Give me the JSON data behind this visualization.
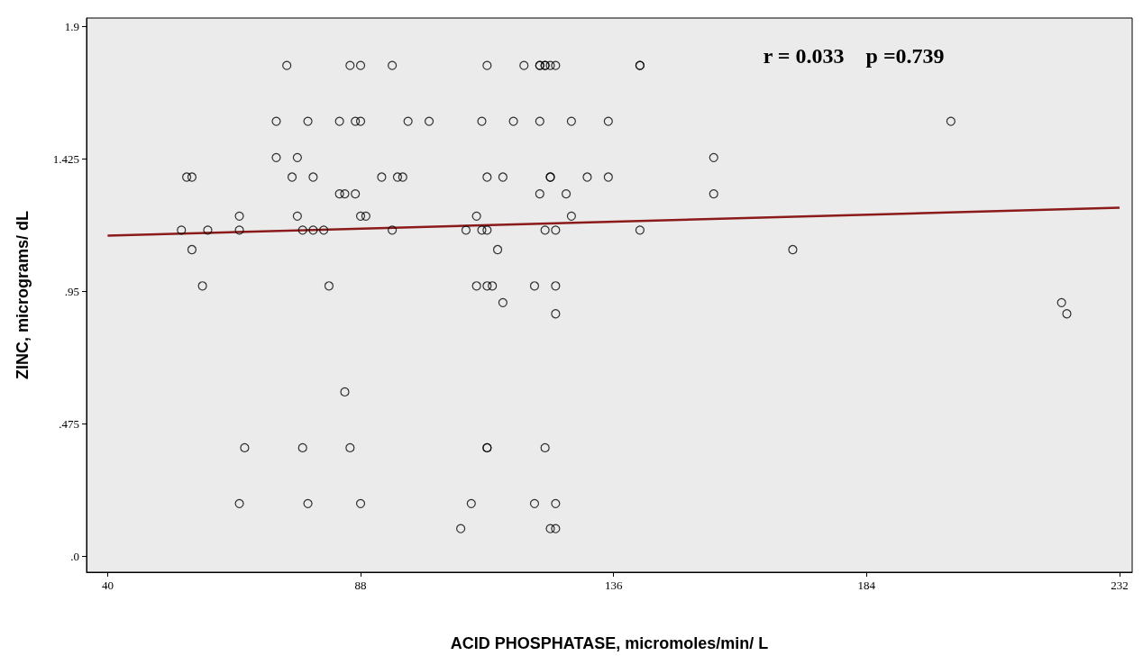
{
  "chart_data": {
    "type": "scatter",
    "xlabel": "ACID PHOSPHATASE, micromoles/min/ L",
    "ylabel": "ZINC, micrograms/ dL",
    "annotations": [
      "r = 0.033    p =0.739"
    ],
    "xlim": [
      36,
      234.4
    ],
    "xticks": [
      40,
      88,
      136,
      184,
      232
    ],
    "ylim": [
      -0.056,
      1.93
    ],
    "yticks": [
      {
        "value": 1.9,
        "label": "1.9"
      },
      {
        "value": 1.425,
        "label": "1.425"
      },
      {
        "value": 0.95,
        "label": ".95"
      },
      {
        "value": 0.475,
        "label": ".475"
      },
      {
        "value": 0,
        "label": ".0"
      }
    ],
    "grid": false,
    "marker": "circle",
    "series": [
      {
        "color": "#000000",
        "x": [
          74,
          86,
          88,
          94,
          112,
          119,
          122,
          122,
          123,
          123,
          124,
          125,
          141,
          141,
          72,
          78,
          84,
          87,
          88,
          97,
          101,
          111,
          117,
          122,
          128,
          135,
          200,
          72,
          76,
          155,
          55,
          56,
          75,
          79,
          92,
          95,
          96,
          112,
          115,
          124,
          124,
          131,
          135,
          84,
          85,
          87,
          122,
          127,
          155,
          65,
          76,
          110,
          128,
          88,
          89,
          54,
          59,
          65,
          77,
          79,
          81,
          94,
          108,
          111,
          112,
          123,
          125,
          141,
          56,
          114,
          170,
          58,
          82,
          110,
          112,
          113,
          121,
          125,
          115,
          221,
          125,
          222,
          85,
          66,
          77,
          86,
          112,
          112,
          123,
          65,
          78,
          88,
          109,
          121,
          125,
          107,
          124,
          125
        ],
        "values": [
          1.76,
          1.76,
          1.76,
          1.76,
          1.76,
          1.76,
          1.76,
          1.76,
          1.76,
          1.76,
          1.76,
          1.76,
          1.76,
          1.76,
          1.56,
          1.56,
          1.56,
          1.56,
          1.56,
          1.56,
          1.56,
          1.56,
          1.56,
          1.56,
          1.56,
          1.56,
          1.56,
          1.43,
          1.43,
          1.43,
          1.36,
          1.36,
          1.36,
          1.36,
          1.36,
          1.36,
          1.36,
          1.36,
          1.36,
          1.36,
          1.36,
          1.36,
          1.36,
          1.3,
          1.3,
          1.3,
          1.3,
          1.3,
          1.3,
          1.22,
          1.22,
          1.22,
          1.22,
          1.22,
          1.22,
          1.17,
          1.17,
          1.17,
          1.17,
          1.17,
          1.17,
          1.17,
          1.17,
          1.17,
          1.17,
          1.17,
          1.17,
          1.17,
          1.1,
          1.1,
          1.1,
          0.97,
          0.97,
          0.97,
          0.97,
          0.97,
          0.97,
          0.97,
          0.91,
          0.91,
          0.87,
          0.87,
          0.59,
          0.39,
          0.39,
          0.39,
          0.39,
          0.39,
          0.39,
          0.19,
          0.19,
          0.19,
          0.19,
          0.19,
          0.19,
          0.1,
          0.1,
          0.1
        ]
      },
      {
        "type": "line",
        "color": "#8b1a1a",
        "x": [
          40,
          232
        ],
        "values": [
          1.15,
          1.25
        ],
        "marker": "none"
      }
    ]
  }
}
